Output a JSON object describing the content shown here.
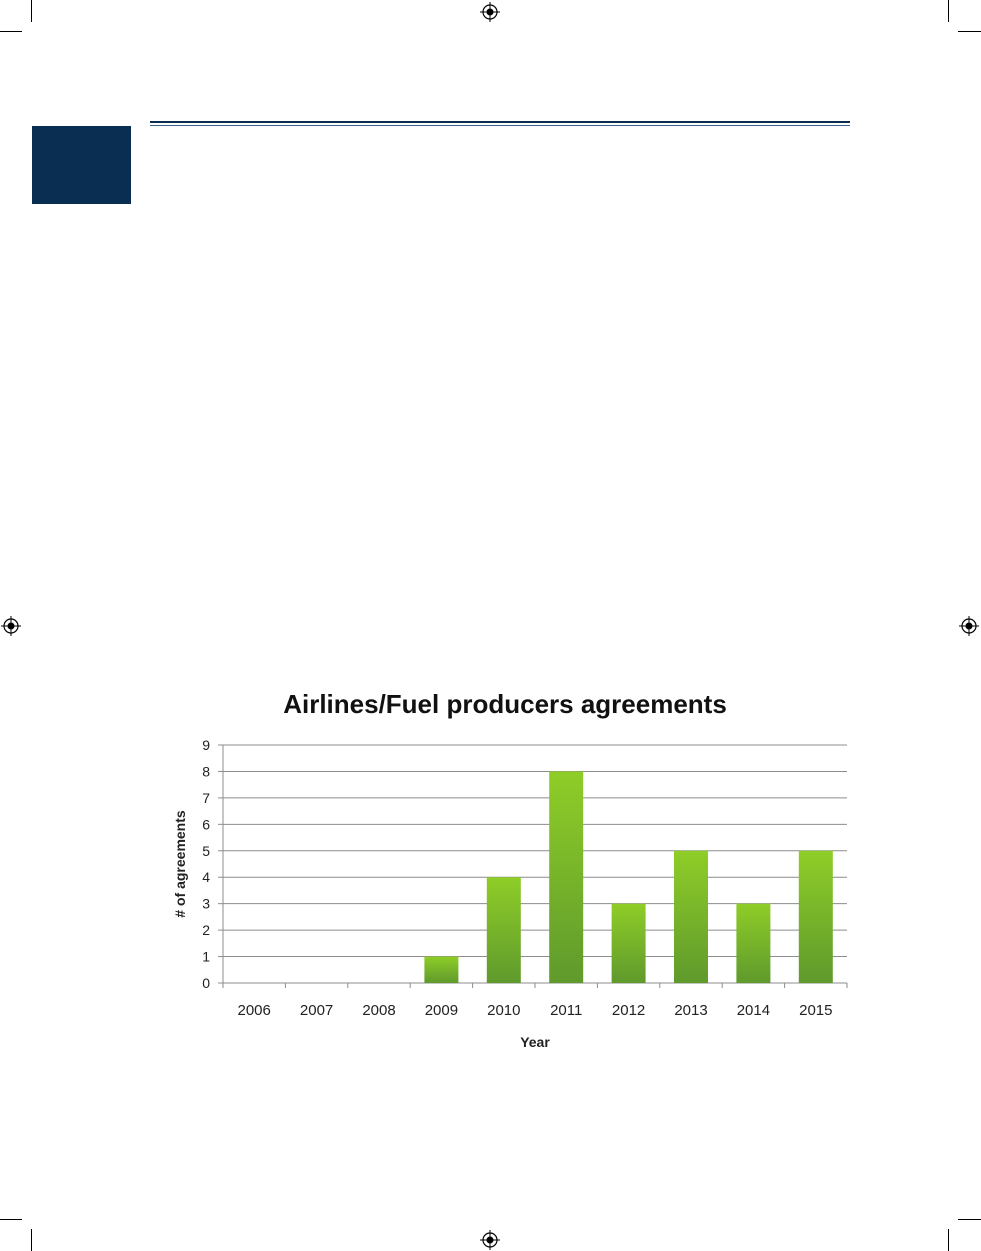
{
  "page": {
    "accent_color": "#0a2d52",
    "registration_mark_icon": "crosshair-registration-icon"
  },
  "chart_data": {
    "type": "bar",
    "title": "Airlines/Fuel producers agreements",
    "xlabel": "Year",
    "ylabel": "# of agreements",
    "categories": [
      "2006",
      "2007",
      "2008",
      "2009",
      "2010",
      "2011",
      "2012",
      "2013",
      "2014",
      "2015"
    ],
    "values": [
      0,
      0,
      0,
      1,
      4,
      8,
      3,
      5,
      3,
      5
    ],
    "ylim": [
      0,
      9
    ],
    "yticks": [
      "0",
      "1",
      "2",
      "3",
      "4",
      "5",
      "6",
      "7",
      "8",
      "9"
    ],
    "grid": true,
    "legend": "none",
    "bar_color_top": "#8fcd28",
    "bar_color_bottom": "#5f9a2c"
  }
}
